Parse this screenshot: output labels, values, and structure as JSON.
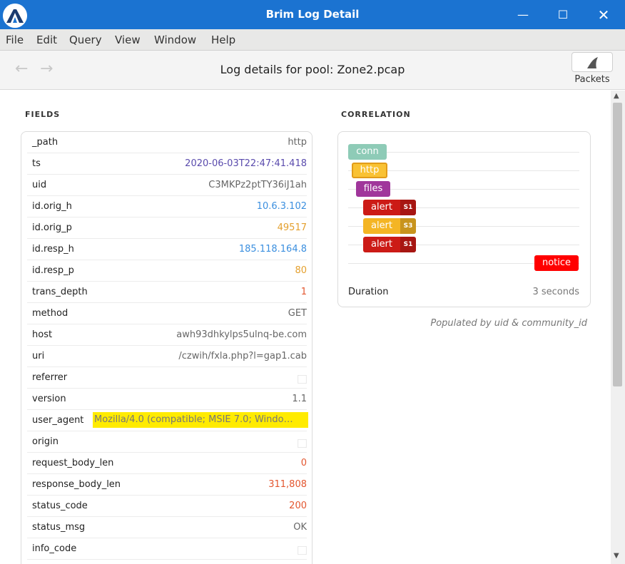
{
  "window": {
    "title": "Brim Log Detail",
    "minimize_icon": "—",
    "maximize_icon": "☐",
    "close_icon": "✕"
  },
  "menu": [
    "File",
    "Edit",
    "Query",
    "View",
    "Window",
    "Help"
  ],
  "toolbar": {
    "back_icon": "←",
    "forward_icon": "→",
    "heading": "Log details for pool: Zone2.pcap",
    "packets_label": "Packets"
  },
  "fields": {
    "title": "FIELDS",
    "rows": [
      {
        "name": "_path",
        "value": "http",
        "type": "string"
      },
      {
        "name": "ts",
        "value": "2020-06-03T22:47:41.418",
        "type": "time"
      },
      {
        "name": "uid",
        "value": "C3MKPz2ptTY36iJ1ah",
        "type": "string"
      },
      {
        "name": "id.orig_h",
        "value": "10.6.3.102",
        "type": "ip"
      },
      {
        "name": "id.orig_p",
        "value": "49517",
        "type": "port"
      },
      {
        "name": "id.resp_h",
        "value": "185.118.164.8",
        "type": "ip"
      },
      {
        "name": "id.resp_p",
        "value": "80",
        "type": "port"
      },
      {
        "name": "trans_depth",
        "value": "1",
        "type": "num"
      },
      {
        "name": "method",
        "value": "GET",
        "type": "string"
      },
      {
        "name": "host",
        "value": "awh93dhkylps5ulnq-be.com",
        "type": "string"
      },
      {
        "name": "uri",
        "value": "/czwih/fxla.php?l=gap1.cab",
        "type": "string"
      },
      {
        "name": "referrer",
        "value": "⃞",
        "type": "null"
      },
      {
        "name": "version",
        "value": "1.1",
        "type": "string"
      },
      {
        "name": "user_agent",
        "value": "Mozilla/4.0 (compatible; MSIE 7.0; Windo…",
        "type": "highlight"
      },
      {
        "name": "origin",
        "value": "⃞",
        "type": "null"
      },
      {
        "name": "request_body_len",
        "value": "0",
        "type": "num"
      },
      {
        "name": "response_body_len",
        "value": "311,808",
        "type": "num"
      },
      {
        "name": "status_code",
        "value": "200",
        "type": "num"
      },
      {
        "name": "status_msg",
        "value": "OK",
        "type": "string"
      },
      {
        "name": "info_code",
        "value": "⃞",
        "type": "null"
      }
    ]
  },
  "correlation": {
    "title": "CORRELATION",
    "items": [
      {
        "label": "conn",
        "kind": "conn",
        "severity": ""
      },
      {
        "label": "http",
        "kind": "http",
        "severity": ""
      },
      {
        "label": "files",
        "kind": "files",
        "severity": ""
      },
      {
        "label": "alert",
        "kind": "alert-red",
        "severity": "S1"
      },
      {
        "label": "alert",
        "kind": "alert-yellow",
        "severity": "S3"
      },
      {
        "label": "alert",
        "kind": "alert-red",
        "severity": "S1"
      },
      {
        "label": "notice",
        "kind": "notice",
        "severity": ""
      }
    ],
    "duration_label": "Duration",
    "duration_value": "3 seconds",
    "note": "Populated by uid & community_id"
  },
  "colors": {
    "titlebar": "#1b73d1",
    "conn": "#8ecbb7",
    "http": "#f9c234",
    "files": "#a0369b",
    "alert_red": "#cc1b16",
    "alert_yellow": "#f4b524",
    "notice": "#ff0000",
    "highlight": "#ffeb00"
  },
  "icons": {
    "app": "brim-logo-icon",
    "packets": "shark-fin-icon"
  }
}
